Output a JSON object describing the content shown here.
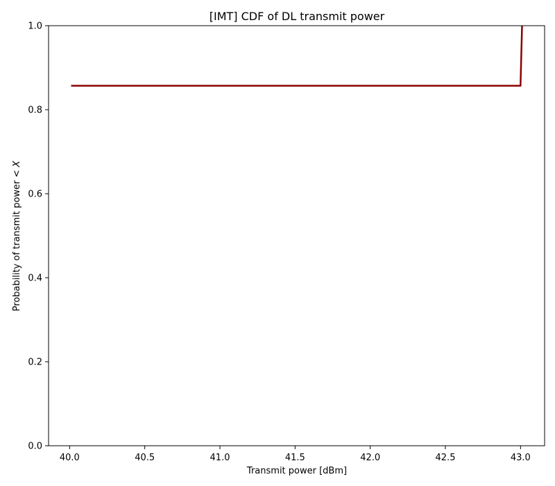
{
  "chart_data": {
    "type": "line",
    "title": "[IMT] CDF of DL transmit power",
    "xlabel": "Transmit power [dBm]",
    "ylabel_text": "Probability of transmit power < ",
    "ylabel_var": "X",
    "xlim": [
      39.86,
      43.16
    ],
    "ylim": [
      0.0,
      1.0
    ],
    "x_ticks": [
      40.0,
      40.5,
      41.0,
      41.5,
      42.0,
      42.5,
      43.0
    ],
    "x_tick_labels": [
      "40.0",
      "40.5",
      "41.0",
      "41.5",
      "42.0",
      "42.5",
      "43.0"
    ],
    "y_ticks": [
      0.0,
      0.2,
      0.4,
      0.6,
      0.8,
      1.0
    ],
    "y_tick_labels": [
      "0.0",
      "0.2",
      "0.4",
      "0.6",
      "0.8",
      "1.0"
    ],
    "grid": false,
    "series": [
      {
        "color": "#8b0000",
        "x": [
          40.01,
          43.0,
          43.0,
          43.01
        ],
        "y": [
          0.857,
          0.857,
          0.86,
          1.0
        ]
      }
    ]
  }
}
